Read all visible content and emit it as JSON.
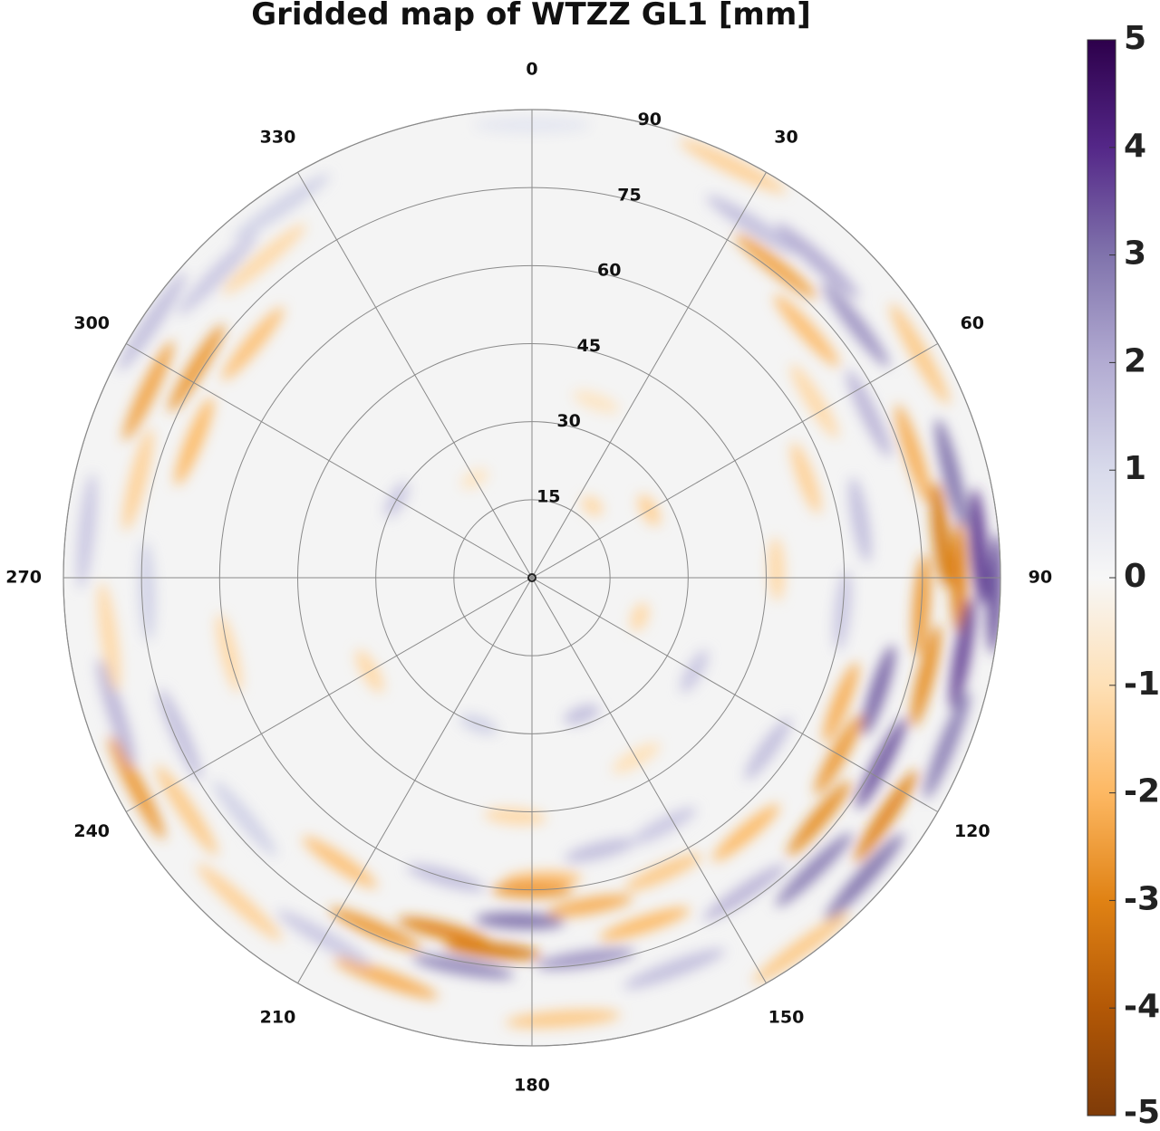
{
  "chart_data": {
    "type": "heatmap",
    "projection": "polar",
    "title": "Gridded map of WTZZ GL1 [mm]",
    "azimuth_ticks": [
      {
        "value": 0,
        "label": "0"
      },
      {
        "value": 30,
        "label": "30"
      },
      {
        "value": 60,
        "label": "60"
      },
      {
        "value": 90,
        "label": "90"
      },
      {
        "value": 120,
        "label": "120"
      },
      {
        "value": 150,
        "label": "150"
      },
      {
        "value": 180,
        "label": "180"
      },
      {
        "value": 210,
        "label": "210"
      },
      {
        "value": 240,
        "label": "240"
      },
      {
        "value": 270,
        "label": "270"
      },
      {
        "value": 300,
        "label": "300"
      },
      {
        "value": 330,
        "label": "330"
      }
    ],
    "radial_ticks": [
      {
        "value": 15,
        "label": "15"
      },
      {
        "value": 30,
        "label": "30"
      },
      {
        "value": 45,
        "label": "45"
      },
      {
        "value": 60,
        "label": "60"
      },
      {
        "value": 75,
        "label": "75"
      },
      {
        "value": 90,
        "label": "90"
      }
    ],
    "radial_range": [
      0,
      90
    ],
    "radial_tick_azimuth": 15,
    "colorbar": {
      "range": [
        -5,
        5
      ],
      "ticks": [
        {
          "value": 5,
          "label": "5"
        },
        {
          "value": 4,
          "label": "4"
        },
        {
          "value": 3,
          "label": "3"
        },
        {
          "value": 2,
          "label": "2"
        },
        {
          "value": 1,
          "label": "1"
        },
        {
          "value": 0,
          "label": "0"
        },
        {
          "value": -1,
          "label": "-1"
        },
        {
          "value": -2,
          "label": "-2"
        },
        {
          "value": -3,
          "label": "-3"
        },
        {
          "value": -4,
          "label": "-4"
        },
        {
          "value": -5,
          "label": "-5"
        }
      ],
      "colors": [
        "#7f3b08",
        "#b35806",
        "#e08214",
        "#fdb863",
        "#fee0b6",
        "#f7f7f7",
        "#d8daeb",
        "#b2abd2",
        "#8073ac",
        "#542788",
        "#2d004b"
      ]
    },
    "background_color": "#f4f4f4",
    "grid": true,
    "values": [
      {
        "az": 0,
        "r": 87,
        "v": 0.6
      },
      {
        "az": 26,
        "r": 88,
        "v": -1.4
      },
      {
        "az": 32,
        "r": 80,
        "v": 1.6
      },
      {
        "az": 38,
        "r": 76,
        "v": -2.4
      },
      {
        "az": 42,
        "r": 82,
        "v": 2.0
      },
      {
        "az": 48,
        "r": 71,
        "v": -1.9
      },
      {
        "az": 52,
        "r": 79,
        "v": 2.4
      },
      {
        "az": 58,
        "r": 64,
        "v": -1.2
      },
      {
        "az": 60,
        "r": 86,
        "v": -1.6
      },
      {
        "az": 64,
        "r": 72,
        "v": 1.8
      },
      {
        "az": 70,
        "r": 56,
        "v": -1.4
      },
      {
        "az": 72,
        "r": 77,
        "v": -2.2
      },
      {
        "az": 76,
        "r": 83,
        "v": 3.0
      },
      {
        "az": 80,
        "r": 64,
        "v": 1.6
      },
      {
        "az": 84,
        "r": 79,
        "v": -3.2
      },
      {
        "az": 86,
        "r": 86,
        "v": 3.8
      },
      {
        "az": 88,
        "r": 47,
        "v": -1.2
      },
      {
        "az": 90,
        "r": 82,
        "v": -3.0
      },
      {
        "az": 92,
        "r": 89,
        "v": 3.4
      },
      {
        "az": 94,
        "r": 75,
        "v": -2.6
      },
      {
        "az": 96,
        "r": 60,
        "v": 1.4
      },
      {
        "az": 100,
        "r": 84,
        "v": 3.6
      },
      {
        "az": 104,
        "r": 78,
        "v": -2.8
      },
      {
        "az": 108,
        "r": 70,
        "v": 3.2
      },
      {
        "az": 112,
        "r": 64,
        "v": -2.2
      },
      {
        "az": 112,
        "r": 86,
        "v": 2.8
      },
      {
        "az": 118,
        "r": 76,
        "v": 3.4
      },
      {
        "az": 120,
        "r": 68,
        "v": -2.6
      },
      {
        "az": 124,
        "r": 82,
        "v": -3.0
      },
      {
        "az": 126,
        "r": 56,
        "v": 1.6
      },
      {
        "az": 130,
        "r": 72,
        "v": -2.8
      },
      {
        "az": 132,
        "r": 86,
        "v": 3.0
      },
      {
        "az": 136,
        "r": 78,
        "v": 2.8
      },
      {
        "az": 140,
        "r": 64,
        "v": -2.0
      },
      {
        "az": 144,
        "r": 88,
        "v": -1.6
      },
      {
        "az": 146,
        "r": 73,
        "v": 1.8
      },
      {
        "az": 150,
        "r": 40,
        "v": -1.0
      },
      {
        "az": 152,
        "r": 54,
        "v": 1.4
      },
      {
        "az": 156,
        "r": 62,
        "v": -1.6
      },
      {
        "az": 160,
        "r": 80,
        "v": 1.6
      },
      {
        "az": 162,
        "r": 70,
        "v": -2.0
      },
      {
        "az": 166,
        "r": 54,
        "v": 1.6
      },
      {
        "az": 170,
        "r": 64,
        "v": -2.2
      },
      {
        "az": 172,
        "r": 74,
        "v": 2.4
      },
      {
        "az": 176,
        "r": 85,
        "v": -1.6
      },
      {
        "az": 178,
        "r": 58,
        "v": -1.8
      },
      {
        "az": 180,
        "r": 60,
        "v": -2.6
      },
      {
        "az": 182,
        "r": 66,
        "v": 3.0
      },
      {
        "az": 184,
        "r": 46,
        "v": -1.2
      },
      {
        "az": 186,
        "r": 72,
        "v": -3.2
      },
      {
        "az": 190,
        "r": 76,
        "v": 2.6
      },
      {
        "az": 194,
        "r": 70,
        "v": -3.0
      },
      {
        "az": 196,
        "r": 60,
        "v": 1.6
      },
      {
        "az": 200,
        "r": 82,
        "v": -2.2
      },
      {
        "az": 204,
        "r": 74,
        "v": -2.6
      },
      {
        "az": 210,
        "r": 80,
        "v": 1.4
      },
      {
        "az": 214,
        "r": 66,
        "v": -1.8
      },
      {
        "az": 222,
        "r": 84,
        "v": -1.4
      },
      {
        "az": 230,
        "r": 72,
        "v": 1.2
      },
      {
        "az": 236,
        "r": 80,
        "v": -1.6
      },
      {
        "az": 242,
        "r": 86,
        "v": -2.6
      },
      {
        "az": 246,
        "r": 74,
        "v": 1.6
      },
      {
        "az": 252,
        "r": 84,
        "v": 1.8
      },
      {
        "az": 256,
        "r": 60,
        "v": -1.2
      },
      {
        "az": 262,
        "r": 82,
        "v": -1.2
      },
      {
        "az": 268,
        "r": 74,
        "v": 1.2
      },
      {
        "az": 276,
        "r": 86,
        "v": 1.4
      },
      {
        "az": 284,
        "r": 78,
        "v": -1.4
      },
      {
        "az": 292,
        "r": 70,
        "v": -2.0
      },
      {
        "az": 296,
        "r": 82,
        "v": -2.4
      },
      {
        "az": 302,
        "r": 76,
        "v": -2.6
      },
      {
        "az": 304,
        "r": 88,
        "v": 1.6
      },
      {
        "az": 310,
        "r": 70,
        "v": -1.8
      },
      {
        "az": 314,
        "r": 84,
        "v": 1.4
      },
      {
        "az": 320,
        "r": 80,
        "v": -1.2
      },
      {
        "az": 326,
        "r": 86,
        "v": 1.2
      },
      {
        "az": 40,
        "r": 18,
        "v": -1.2
      },
      {
        "az": 60,
        "r": 26,
        "v": -1.4
      },
      {
        "az": 110,
        "r": 22,
        "v": -1.2
      },
      {
        "az": 120,
        "r": 36,
        "v": 1.4
      },
      {
        "az": 160,
        "r": 28,
        "v": 1.6
      },
      {
        "az": 200,
        "r": 30,
        "v": 1.2
      },
      {
        "az": 240,
        "r": 36,
        "v": -1.2
      },
      {
        "az": 300,
        "r": 30,
        "v": 1.4
      },
      {
        "az": 330,
        "r": 22,
        "v": -0.8
      },
      {
        "az": 20,
        "r": 36,
        "v": -0.8
      }
    ]
  }
}
